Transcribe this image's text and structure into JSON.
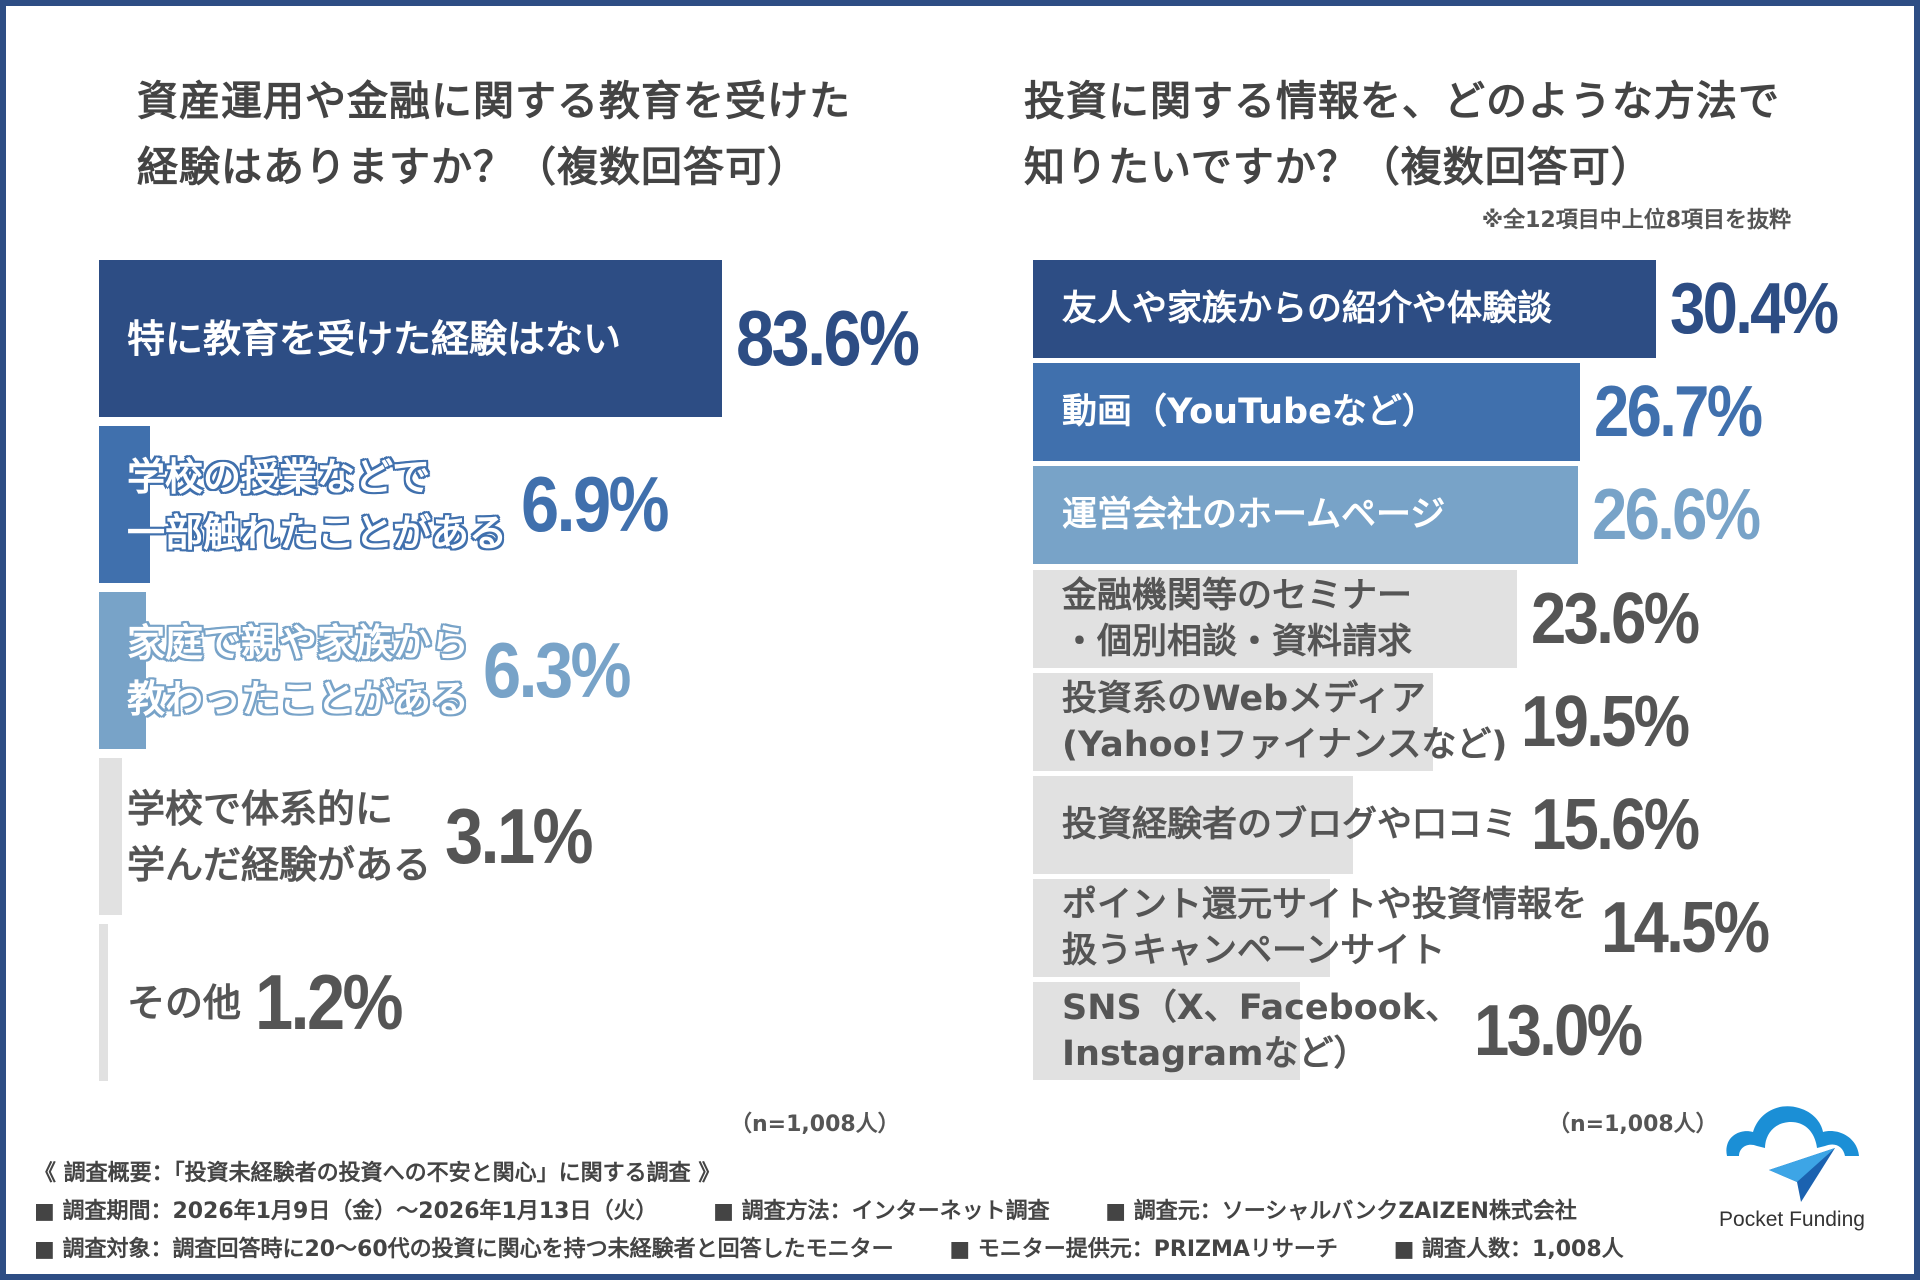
{
  "colors": {
    "dark": "#2d4d84",
    "medium": "#4070ad",
    "light": "#78a3c8",
    "gray": "#e1e1e1",
    "gray_text": "#555555",
    "frame": "#2d4d84"
  },
  "left": {
    "title": "資産運用や金融に関する教育を受けた\n経験はありますか？（複数回答可）",
    "sample": "（n=1,008人）"
  },
  "right": {
    "title": "投資に関する情報を、どのような方法で\n知りたいですか？（複数回答可）",
    "note": "※全12項目中上位8項目を抜粋",
    "sample": "（n=1,008人）"
  },
  "chart_data": [
    {
      "type": "bar",
      "orientation": "horizontal",
      "title": "資産運用や金融に関する教育を受けた経験はありますか？（複数回答可）",
      "unit": "%",
      "categories": [
        "特に教育を受けた経験はない",
        "学校の授業などで\n一部触れたことがある",
        "家庭で親や家族から\n教わったことがある",
        "学校で体系的に\n学んだ経験がある",
        "その他"
      ],
      "values": [
        83.6,
        6.9,
        6.3,
        3.1,
        1.2
      ],
      "labels": [
        "83.6%",
        "6.9%",
        "6.3%",
        "3.1%",
        "1.2%"
      ],
      "bar_colors": [
        "#2d4d84",
        "#4070ad",
        "#78a3c8",
        "#e1e1e1",
        "#e1e1e1"
      ]
    },
    {
      "type": "bar",
      "orientation": "horizontal",
      "title": "投資に関する情報を、どのような方法で知りたいですか？（複数回答可）",
      "unit": "%",
      "categories": [
        "友人や家族からの紹介や体験談",
        "動画（YouTubeなど）",
        "運営会社のホームページ",
        "金融機関等のセミナー\n・個別相談・資料請求",
        "投資系のWebメディア\n(Yahoo!ファイナンスなど)",
        "投資経験者のブログや口コミ",
        "ポイント還元サイトや投資情報を\n扱うキャンペーンサイト",
        "SNS（X、Facebook、\nInstagramなど）"
      ],
      "values": [
        30.4,
        26.7,
        26.6,
        23.6,
        19.5,
        15.6,
        14.5,
        13.0
      ],
      "labels": [
        "30.4%",
        "26.7%",
        "26.6%",
        "23.6%",
        "19.5%",
        "15.6%",
        "14.5%",
        "13.0%"
      ],
      "bar_colors": [
        "#2d4d84",
        "#4070ad",
        "#78a3c8",
        "#e1e1e1",
        "#e1e1e1",
        "#e1e1e1",
        "#e1e1e1",
        "#e1e1e1"
      ]
    }
  ],
  "footer": {
    "heading": "《 調査概要：「投資未経験者の投資への不安と関心」に関する調査 》",
    "line1": [
      "■ 調査期間：2026年1月9日（金）～2026年1月13日（火）",
      "■ 調査方法：インターネット調査",
      "■ 調査元：ソーシャルバンクZAIZEN株式会社"
    ],
    "line2": [
      "■ 調査対象：調査回答時に20～60代の投資に関心を持つ未経験者と回答したモニター",
      "■ モニター提供元：PRIZMAリサーチ",
      "■ 調査人数：1,008人"
    ]
  },
  "logo": {
    "text": "Pocket Funding",
    "icon": "cloud-paper-plane-icon"
  }
}
